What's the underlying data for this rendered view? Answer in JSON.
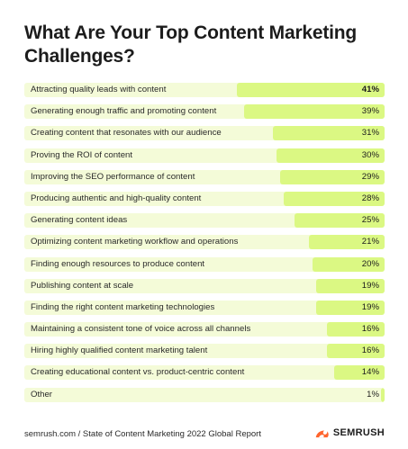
{
  "title": "What Are Your Top Content Marketing Challenges?",
  "footer": {
    "source": "semrush.com / State of Content Marketing 2022 Global Report",
    "brand": "SEMRUSH",
    "logo_icon": "semrush-fire-logo"
  },
  "colors": {
    "track": "#f4fbd8",
    "bar": "#dbf883",
    "logo_orange": "#ff642d"
  },
  "chart_data": {
    "type": "bar",
    "orientation": "horizontal",
    "title": "What Are Your Top Content Marketing Challenges?",
    "xlim": [
      0,
      100
    ],
    "unit": "%",
    "categories": [
      "Attracting quality leads with content",
      "Generating enough traffic and promoting content",
      "Creating content that resonates with our audience",
      "Proving the ROI of content",
      "Improving the SEO performance of content",
      "Producing authentic and high-quality content",
      "Generating content ideas",
      "Optimizing content marketing workflow and operations",
      "Finding enough resources to produce content",
      "Publishing content at scale",
      "Finding the right content marketing technologies",
      "Maintaining a consistent tone of voice across all channels",
      "Hiring highly qualified content marketing talent",
      "Creating educational content vs. product-centric content",
      "Other"
    ],
    "values": [
      41,
      39,
      31,
      30,
      29,
      28,
      25,
      21,
      20,
      19,
      19,
      16,
      16,
      14,
      1
    ],
    "value_labels": [
      "41%",
      "39%",
      "31%",
      "30%",
      "29%",
      "28%",
      "25%",
      "21%",
      "20%",
      "19%",
      "19%",
      "16%",
      "16%",
      "14%",
      "1%"
    ]
  }
}
